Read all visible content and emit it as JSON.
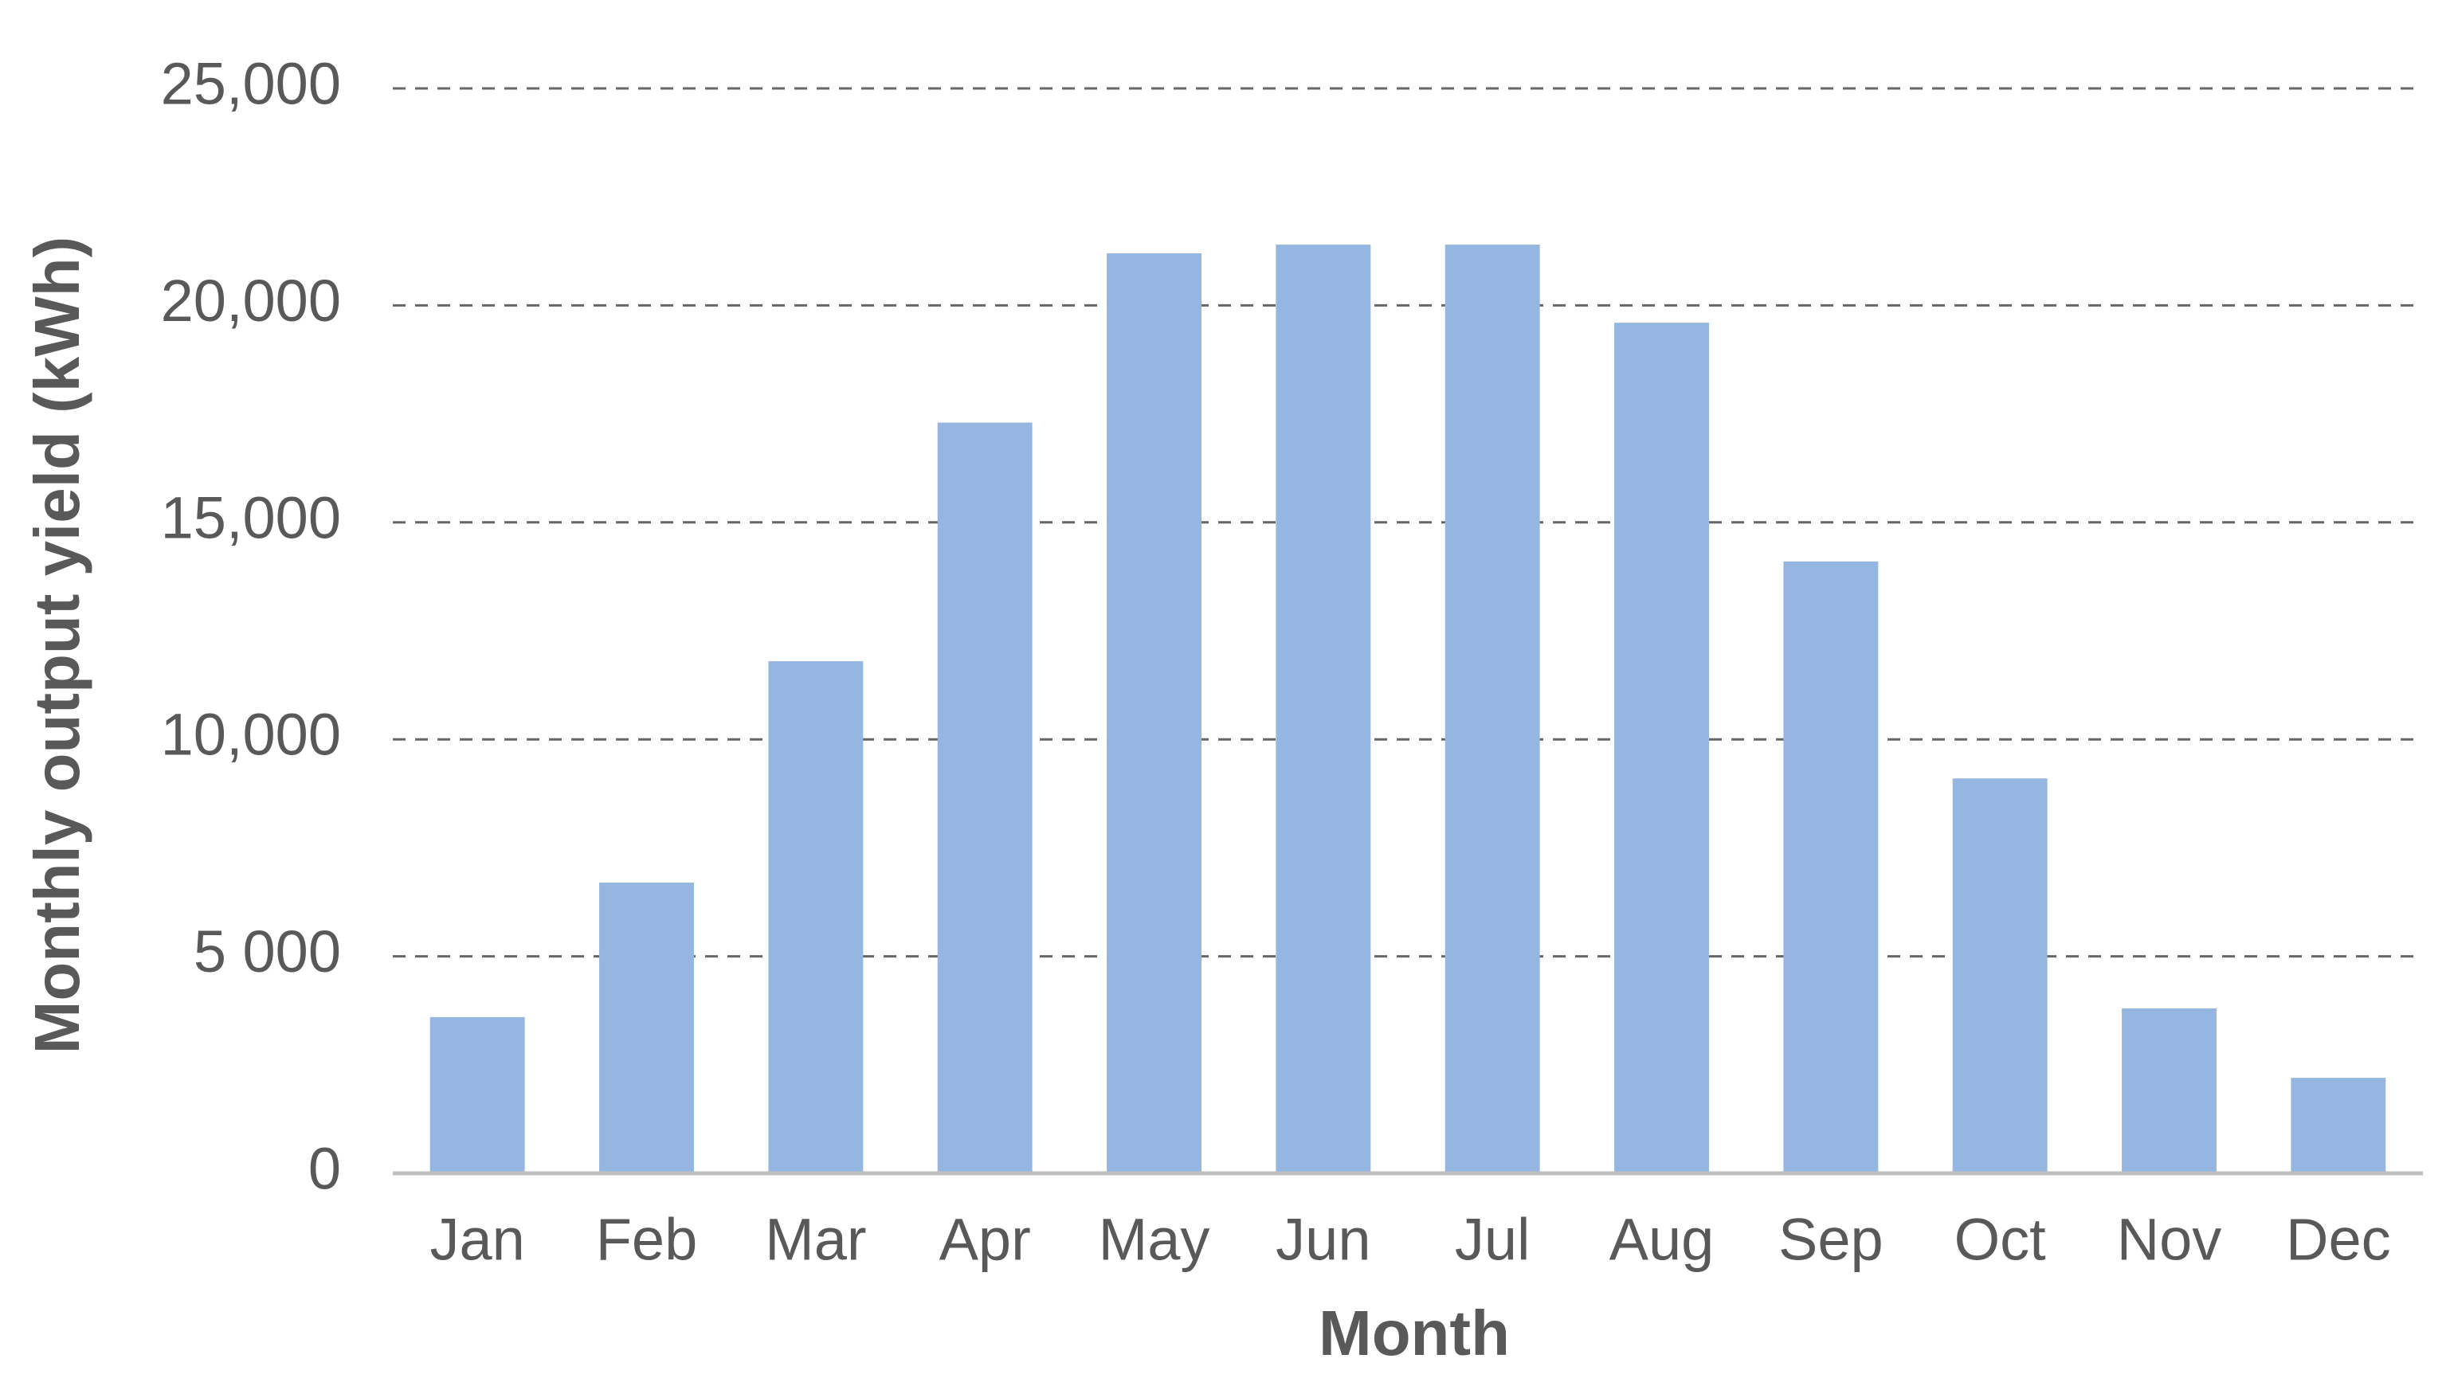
{
  "chart_data": {
    "type": "bar",
    "x_label": "Month",
    "y_label": "Monthly output yield (kWh)",
    "categories": [
      "Jan",
      "Feb",
      "Mar",
      "Apr",
      "May",
      "Jun",
      "Jul",
      "Aug",
      "Sep",
      "Oct",
      "Nov",
      "Dec"
    ],
    "values": [
      3600,
      6700,
      11800,
      17300,
      21200,
      21400,
      21400,
      19600,
      14100,
      9100,
      3800,
      2200
    ],
    "color": "#95b6e0",
    "ylim": [
      0,
      25000
    ],
    "yticks": [
      0,
      {
        "value": 5000,
        "label": "5 000"
      },
      {
        "value": 10000,
        "label": "10,000"
      },
      {
        "value": 15000,
        "label": "15,000"
      },
      {
        "value": 20000,
        "label": "20,000"
      },
      {
        "value": 25000,
        "label": "25,000"
      }
    ],
    "grid": true
  }
}
